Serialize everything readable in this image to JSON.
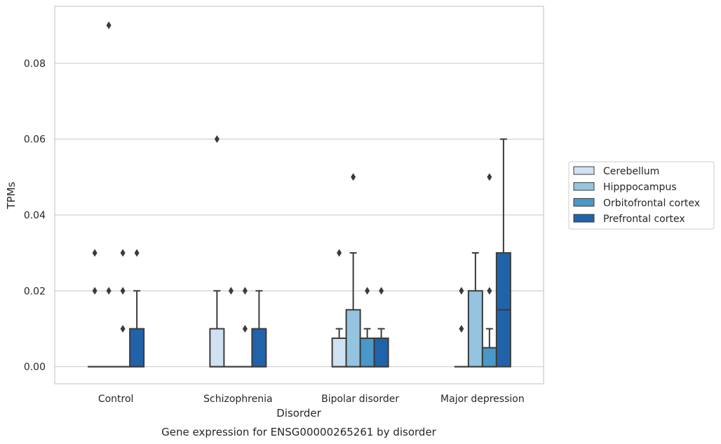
{
  "chart_data": {
    "type": "box",
    "title": "",
    "caption": "Gene expression for ENSG00000265261 by disorder",
    "xlabel": "Disorder",
    "ylabel": "TPMs",
    "ylim": [
      -0.0045,
      0.095
    ],
    "yticks": [
      0.0,
      0.02,
      0.04,
      0.06,
      0.08
    ],
    "ytick_labels": [
      "0.00",
      "0.02",
      "0.04",
      "0.06",
      "0.08"
    ],
    "grid": "horizontal",
    "legend_position": "right",
    "categories": [
      "Control",
      "Schizophrenia",
      "Bipolar disorder",
      "Major depression"
    ],
    "series": [
      {
        "name": "Cerebellum",
        "color": "#d0e1f2",
        "boxes": [
          {
            "q1": 0,
            "median": 0,
            "q3": 0,
            "whisker_low": 0,
            "whisker_high": 0,
            "outliers": [
              0.02,
              0.03
            ]
          },
          {
            "q1": 0,
            "median": 0,
            "q3": 0.01,
            "whisker_low": 0,
            "whisker_high": 0.02,
            "outliers": [
              0.06
            ]
          },
          {
            "q1": 0,
            "median": 0,
            "q3": 0.0075,
            "whisker_low": 0,
            "whisker_high": 0.01,
            "outliers": [
              0.03
            ]
          },
          {
            "q1": 0,
            "median": 0,
            "q3": 0,
            "whisker_low": 0,
            "whisker_high": 0,
            "outliers": [
              0.01,
              0.02
            ]
          }
        ]
      },
      {
        "name": "Hipppocampus",
        "color": "#94c4df",
        "boxes": [
          {
            "q1": 0,
            "median": 0,
            "q3": 0,
            "whisker_low": 0,
            "whisker_high": 0,
            "outliers": [
              0.02,
              0.09
            ]
          },
          {
            "q1": 0,
            "median": 0,
            "q3": 0,
            "whisker_low": 0,
            "whisker_high": 0,
            "outliers": [
              0.02
            ]
          },
          {
            "q1": 0,
            "median": 0,
            "q3": 0.015,
            "whisker_low": 0,
            "whisker_high": 0.03,
            "outliers": [
              0.05
            ]
          },
          {
            "q1": 0,
            "median": 0,
            "q3": 0.02,
            "whisker_low": 0,
            "whisker_high": 0.03,
            "outliers": []
          }
        ]
      },
      {
        "name": "Orbitofrontal cortex",
        "color": "#4a98c9",
        "boxes": [
          {
            "q1": 0,
            "median": 0,
            "q3": 0,
            "whisker_low": 0,
            "whisker_high": 0,
            "outliers": [
              0.01,
              0.02,
              0.03
            ]
          },
          {
            "q1": 0,
            "median": 0,
            "q3": 0,
            "whisker_low": 0,
            "whisker_high": 0,
            "outliers": [
              0.01,
              0.02
            ]
          },
          {
            "q1": 0,
            "median": 0,
            "q3": 0.0075,
            "whisker_low": 0,
            "whisker_high": 0.01,
            "outliers": [
              0.02
            ]
          },
          {
            "q1": 0,
            "median": 0,
            "q3": 0.005,
            "whisker_low": 0,
            "whisker_high": 0.01,
            "outliers": [
              0.02,
              0.05
            ]
          }
        ]
      },
      {
        "name": "Prefrontal cortex",
        "color": "#2163aa",
        "boxes": [
          {
            "q1": 0,
            "median": 0,
            "q3": 0.01,
            "whisker_low": 0,
            "whisker_high": 0.02,
            "outliers": [
              0.03
            ]
          },
          {
            "q1": 0,
            "median": 0,
            "q3": 0.01,
            "whisker_low": 0,
            "whisker_high": 0.02,
            "outliers": []
          },
          {
            "q1": 0,
            "median": 0,
            "q3": 0.0075,
            "whisker_low": 0,
            "whisker_high": 0.01,
            "outliers": [
              0.02
            ]
          },
          {
            "q1": 0,
            "median": 0.015,
            "q3": 0.03,
            "whisker_low": 0,
            "whisker_high": 0.06,
            "outliers": []
          }
        ]
      }
    ]
  }
}
